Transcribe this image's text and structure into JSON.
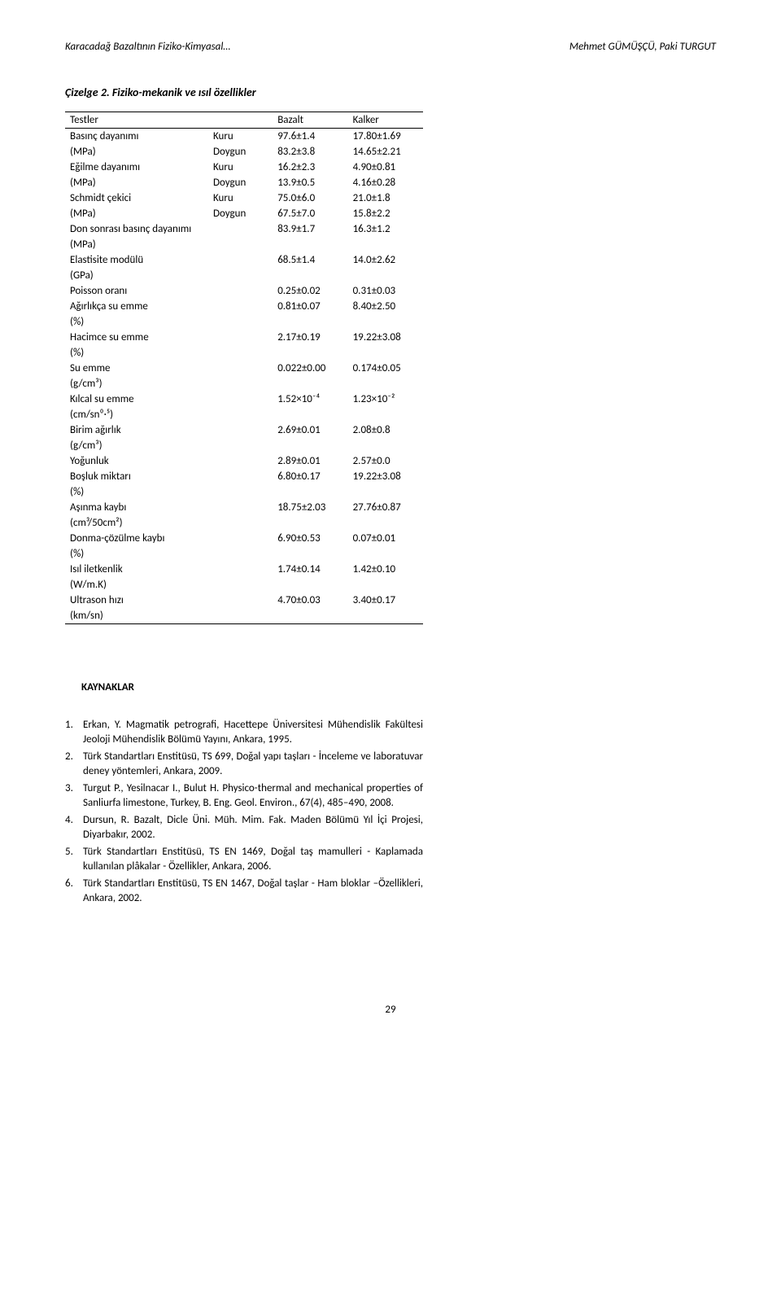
{
  "header": {
    "left": "Karacadağ Bazaltının Fiziko-Kimyasal…",
    "right": "Mehmet GÜMÜŞÇÜ, Paki TURGUT"
  },
  "table_caption": "Çizelge 2. Fiziko-mekanik ve ısıl özellikler",
  "columns": [
    "Testler",
    "",
    "Bazalt",
    "Kalker"
  ],
  "rows": [
    [
      "Basınç dayanımı",
      "Kuru",
      "97.6±1.4",
      "17.80±1.69"
    ],
    [
      "(MPa)",
      "Doygun",
      "83.2±3.8",
      "14.65±2.21"
    ],
    [
      "Eğilme dayanımı",
      "Kuru",
      "16.2±2.3",
      "4.90±0.81"
    ],
    [
      "(MPa)",
      "Doygun",
      "13.9±0.5",
      "4.16±0.28"
    ],
    [
      "Schmidt çekici",
      "Kuru",
      "75.0±6.0",
      "21.0±1.8"
    ],
    [
      "(MPa)",
      "Doygun",
      "67.5±7.0",
      "15.8±2.2"
    ],
    [
      "Don sonrası basınç dayanımı",
      "",
      "83.9±1.7",
      "16.3±1.2"
    ],
    [
      "(MPa)",
      "",
      "",
      ""
    ],
    [
      "Elastisite modülü",
      "",
      "68.5±1.4",
      "14.0±2.62"
    ],
    [
      "(GPa)",
      "",
      "",
      ""
    ],
    [
      "Poisson oranı",
      "",
      "0.25±0.02",
      "0.31±0.03"
    ],
    [
      "Ağırlıkça su emme",
      "",
      "0.81±0.07",
      "8.40±2.50"
    ],
    [
      "(%)",
      "",
      "",
      ""
    ],
    [
      "Hacimce su emme",
      "",
      "2.17±0.19",
      "19.22±3.08"
    ],
    [
      "(%)",
      "",
      "",
      ""
    ],
    [
      "Su emme",
      "",
      "0.022±0.00",
      "0.174±0.05"
    ],
    [
      "(g/cm³)",
      "",
      "",
      ""
    ],
    [
      "Kılcal su emme",
      "",
      "1.52×10⁻⁴",
      "1.23×10⁻²"
    ],
    [
      "(cm/sn⁰·⁵)",
      "",
      "",
      ""
    ],
    [
      "Birim ağırlık",
      "",
      "2.69±0.01",
      "2.08±0.8"
    ],
    [
      "(g/cm³)",
      "",
      "",
      ""
    ],
    [
      "Yoğunluk",
      "",
      "2.89±0.01",
      "2.57±0.0"
    ],
    [
      "Boşluk miktarı",
      "",
      "6.80±0.17",
      "19.22±3.08"
    ],
    [
      "(%)",
      "",
      "",
      ""
    ],
    [
      "Aşınma kaybı",
      "",
      "18.75±2.03",
      "27.76±0.87"
    ],
    [
      "(cm³/50cm²)",
      "",
      "",
      ""
    ],
    [
      "Donma-çözülme kaybı",
      "",
      "6.90±0.53",
      "0.07±0.01"
    ],
    [
      "(%)",
      "",
      "",
      ""
    ],
    [
      "Isıl iletkenlik",
      "",
      "1.74±0.14",
      "1.42±0.10"
    ],
    [
      "(W/m.K)",
      "",
      "",
      ""
    ],
    [
      "Ultrason hızı",
      "",
      "4.70±0.03",
      "3.40±0.17"
    ],
    [
      "(km/sn)",
      "",
      "",
      ""
    ]
  ],
  "refs_title": "KAYNAKLAR",
  "references": [
    {
      "n": "1.",
      "t": "Erkan, Y. Magmatik petrografi, Hacettepe Üniversitesi Mühendislik Fakültesi Jeoloji Mühendislik Bölümü Yayını, Ankara, 1995."
    },
    {
      "n": "2.",
      "t": "Türk Standartları Enstitüsü, TS 699, Doğal yapı taşları - İnceleme ve laboratuvar deney yöntemleri, Ankara, 2009."
    },
    {
      "n": "3.",
      "t": "Turgut P., Yesilnacar I., Bulut H. Physico-thermal and mechanical properties of Sanliurfa limestone, Turkey, B. Eng. Geol. Environ., 67(4), 485–490, 2008."
    },
    {
      "n": "4.",
      "t": "Dursun, R. Bazalt, Dicle Üni. Müh. Mim. Fak. Maden Bölümü Yıl İçi Projesi, Diyarbakır, 2002."
    },
    {
      "n": "5.",
      "t": "Türk Standartları Enstitüsü, TS EN 1469, Doğal taş mamulleri - Kaplamada kullanılan plâkalar - Özellikler, Ankara, 2006."
    },
    {
      "n": "6.",
      "t": "Türk Standartları Enstitüsü, TS EN 1467, Doğal taşlar - Ham bloklar –Özellikleri, Ankara, 2002."
    }
  ],
  "page_number": "29"
}
